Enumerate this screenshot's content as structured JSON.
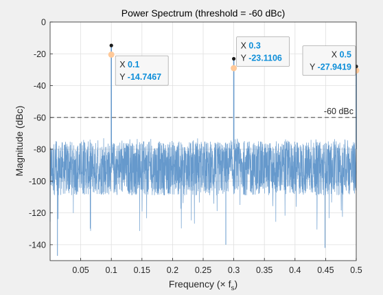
{
  "chart_data": {
    "type": "line",
    "title": "Power Spectrum (threshold = -60 dBc)",
    "xlabel": "Frequency (× f",
    "xlabel_sub": "s",
    "xlabel_close": ")",
    "ylabel": "Magnitude (dBc)",
    "xlim": [
      0,
      0.5
    ],
    "ylim": [
      -150,
      0
    ],
    "x_ticks": [
      0.05,
      0.1,
      0.15,
      0.2,
      0.25,
      0.3,
      0.35,
      0.4,
      0.45,
      0.5
    ],
    "x_tick_labels": [
      "0.05",
      "0.1",
      "0.15",
      "0.2",
      "0.25",
      "0.3",
      "0.35",
      "0.4",
      "0.45",
      "0.5"
    ],
    "y_ticks": [
      0,
      -20,
      -40,
      -60,
      -80,
      -100,
      -120,
      -140
    ],
    "y_tick_labels": [
      "0",
      "-20",
      "-40",
      "-60",
      "-80",
      "-100",
      "-120",
      "-140"
    ],
    "grid": true,
    "series": [
      {
        "color": "#6699cc",
        "noise_floor": {
          "x_range": [
            0,
            0.5
          ],
          "y_range": [
            -112,
            -73
          ],
          "typical_center": -92,
          "min_dips": [
            -147,
            -140,
            -142
          ]
        },
        "peaks": [
          {
            "x": 0.1,
            "y": -14.7467
          },
          {
            "x": 0.3,
            "y": -23.1106
          },
          {
            "x": 0.5,
            "y": -27.9419
          }
        ]
      }
    ],
    "markers": [
      {
        "x": 0.1,
        "y": -20.5
      },
      {
        "x": 0.3,
        "y": -29.0
      },
      {
        "x": 0.5,
        "y": -30.5
      }
    ],
    "threshold": {
      "y": -60,
      "label": "-60 dBc"
    },
    "datatips": [
      {
        "x_name": "X",
        "x_value": "0.1",
        "y_name": "Y",
        "y_value": "-14.7467"
      },
      {
        "x_name": "X",
        "x_value": "0.3",
        "y_name": "Y",
        "y_value": "-23.1106"
      },
      {
        "x_name": "X",
        "x_value": "0.5",
        "y_name": "Y",
        "y_value": "-27.9419"
      }
    ],
    "colors": {
      "background": "#f0f0f0",
      "plot_area": "#ffffff",
      "line": "#6699cc",
      "marker": "#ffc999",
      "peak_dot": "#1a1a1a",
      "datatip_value": "#0d8ed9"
    }
  }
}
